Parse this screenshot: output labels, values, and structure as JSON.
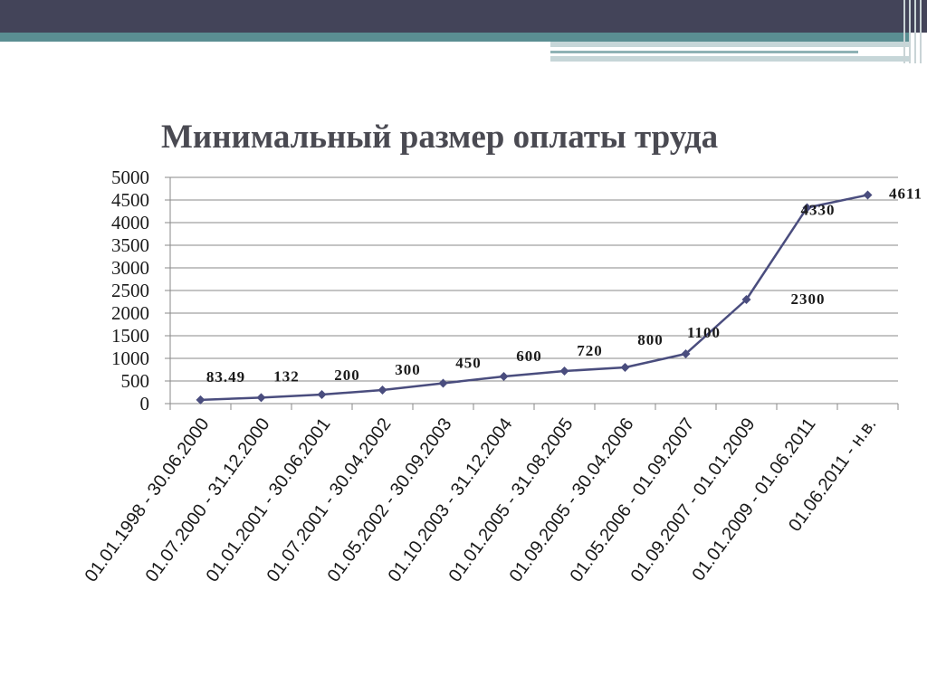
{
  "slide": {
    "colors": {
      "top_band": "#434459",
      "teal_band": "#5a8e92",
      "line": "#4a4d7e",
      "title": "#4a4a52"
    }
  },
  "chart_data": {
    "type": "line",
    "title": "Минимальный размер оплаты труда",
    "xlabel": "",
    "ylabel": "",
    "ylim": [
      0,
      5000
    ],
    "yticks": [
      0,
      500,
      1000,
      1500,
      2000,
      2500,
      3000,
      3500,
      4000,
      4500,
      5000
    ],
    "grid": true,
    "legend": "none",
    "categories": [
      "01.01.1998 - 30.06.2000",
      "01.07.2000 - 31.12.2000",
      "01.01.2001 - 30.06.2001",
      "01.07.2001 - 30.04.2002",
      "01.05.2002 - 30.09.2003",
      "01.10.2003 - 31.12.2004",
      "01.01.2005 - 31.08.2005",
      "01.09.2005 - 30.04.2006",
      "01.05.2006 - 01.09.2007",
      "01.09.2007 - 01.01.2009",
      "01.01.2009 - 01.06.2011",
      "01.06.2011 - н.в."
    ],
    "values": [
      83.49,
      132,
      200,
      300,
      450,
      600,
      720,
      800,
      1100,
      2300,
      4330,
      4611
    ],
    "data_labels": [
      "83.49",
      "132",
      "200",
      "300",
      "450",
      "600",
      "720",
      "800",
      "1100",
      "2300",
      "4330",
      "4611"
    ]
  }
}
